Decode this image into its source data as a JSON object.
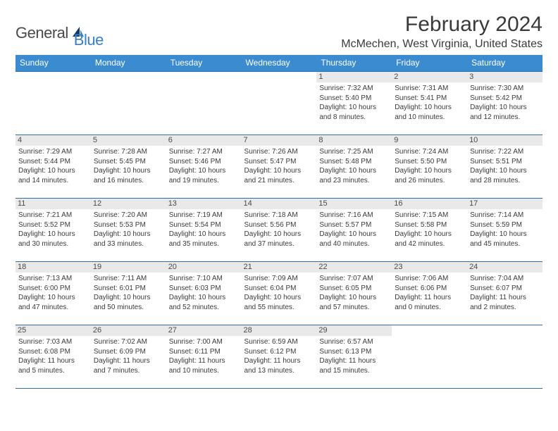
{
  "logo": {
    "text_general": "General",
    "text_blue": "Blue"
  },
  "title": {
    "month": "February 2024",
    "location": "McMechen, West Virginia, United States"
  },
  "colors": {
    "header_bg": "#3a8bd0",
    "header_text": "#ffffff",
    "cell_border": "#2f6fa8",
    "daynum_bg": "#e9e9e9",
    "body_text": "#3a3a3a",
    "logo_blue": "#3a7fc4"
  },
  "weekdays": [
    "Sunday",
    "Monday",
    "Tuesday",
    "Wednesday",
    "Thursday",
    "Friday",
    "Saturday"
  ],
  "weeks": [
    [
      null,
      null,
      null,
      null,
      {
        "num": "1",
        "sunrise": "Sunrise: 7:32 AM",
        "sunset": "Sunset: 5:40 PM",
        "daylight": "Daylight: 10 hours and 8 minutes."
      },
      {
        "num": "2",
        "sunrise": "Sunrise: 7:31 AM",
        "sunset": "Sunset: 5:41 PM",
        "daylight": "Daylight: 10 hours and 10 minutes."
      },
      {
        "num": "3",
        "sunrise": "Sunrise: 7:30 AM",
        "sunset": "Sunset: 5:42 PM",
        "daylight": "Daylight: 10 hours and 12 minutes."
      }
    ],
    [
      {
        "num": "4",
        "sunrise": "Sunrise: 7:29 AM",
        "sunset": "Sunset: 5:44 PM",
        "daylight": "Daylight: 10 hours and 14 minutes."
      },
      {
        "num": "5",
        "sunrise": "Sunrise: 7:28 AM",
        "sunset": "Sunset: 5:45 PM",
        "daylight": "Daylight: 10 hours and 16 minutes."
      },
      {
        "num": "6",
        "sunrise": "Sunrise: 7:27 AM",
        "sunset": "Sunset: 5:46 PM",
        "daylight": "Daylight: 10 hours and 19 minutes."
      },
      {
        "num": "7",
        "sunrise": "Sunrise: 7:26 AM",
        "sunset": "Sunset: 5:47 PM",
        "daylight": "Daylight: 10 hours and 21 minutes."
      },
      {
        "num": "8",
        "sunrise": "Sunrise: 7:25 AM",
        "sunset": "Sunset: 5:48 PM",
        "daylight": "Daylight: 10 hours and 23 minutes."
      },
      {
        "num": "9",
        "sunrise": "Sunrise: 7:24 AM",
        "sunset": "Sunset: 5:50 PM",
        "daylight": "Daylight: 10 hours and 26 minutes."
      },
      {
        "num": "10",
        "sunrise": "Sunrise: 7:22 AM",
        "sunset": "Sunset: 5:51 PM",
        "daylight": "Daylight: 10 hours and 28 minutes."
      }
    ],
    [
      {
        "num": "11",
        "sunrise": "Sunrise: 7:21 AM",
        "sunset": "Sunset: 5:52 PM",
        "daylight": "Daylight: 10 hours and 30 minutes."
      },
      {
        "num": "12",
        "sunrise": "Sunrise: 7:20 AM",
        "sunset": "Sunset: 5:53 PM",
        "daylight": "Daylight: 10 hours and 33 minutes."
      },
      {
        "num": "13",
        "sunrise": "Sunrise: 7:19 AM",
        "sunset": "Sunset: 5:54 PM",
        "daylight": "Daylight: 10 hours and 35 minutes."
      },
      {
        "num": "14",
        "sunrise": "Sunrise: 7:18 AM",
        "sunset": "Sunset: 5:56 PM",
        "daylight": "Daylight: 10 hours and 37 minutes."
      },
      {
        "num": "15",
        "sunrise": "Sunrise: 7:16 AM",
        "sunset": "Sunset: 5:57 PM",
        "daylight": "Daylight: 10 hours and 40 minutes."
      },
      {
        "num": "16",
        "sunrise": "Sunrise: 7:15 AM",
        "sunset": "Sunset: 5:58 PM",
        "daylight": "Daylight: 10 hours and 42 minutes."
      },
      {
        "num": "17",
        "sunrise": "Sunrise: 7:14 AM",
        "sunset": "Sunset: 5:59 PM",
        "daylight": "Daylight: 10 hours and 45 minutes."
      }
    ],
    [
      {
        "num": "18",
        "sunrise": "Sunrise: 7:13 AM",
        "sunset": "Sunset: 6:00 PM",
        "daylight": "Daylight: 10 hours and 47 minutes."
      },
      {
        "num": "19",
        "sunrise": "Sunrise: 7:11 AM",
        "sunset": "Sunset: 6:01 PM",
        "daylight": "Daylight: 10 hours and 50 minutes."
      },
      {
        "num": "20",
        "sunrise": "Sunrise: 7:10 AM",
        "sunset": "Sunset: 6:03 PM",
        "daylight": "Daylight: 10 hours and 52 minutes."
      },
      {
        "num": "21",
        "sunrise": "Sunrise: 7:09 AM",
        "sunset": "Sunset: 6:04 PM",
        "daylight": "Daylight: 10 hours and 55 minutes."
      },
      {
        "num": "22",
        "sunrise": "Sunrise: 7:07 AM",
        "sunset": "Sunset: 6:05 PM",
        "daylight": "Daylight: 10 hours and 57 minutes."
      },
      {
        "num": "23",
        "sunrise": "Sunrise: 7:06 AM",
        "sunset": "Sunset: 6:06 PM",
        "daylight": "Daylight: 11 hours and 0 minutes."
      },
      {
        "num": "24",
        "sunrise": "Sunrise: 7:04 AM",
        "sunset": "Sunset: 6:07 PM",
        "daylight": "Daylight: 11 hours and 2 minutes."
      }
    ],
    [
      {
        "num": "25",
        "sunrise": "Sunrise: 7:03 AM",
        "sunset": "Sunset: 6:08 PM",
        "daylight": "Daylight: 11 hours and 5 minutes."
      },
      {
        "num": "26",
        "sunrise": "Sunrise: 7:02 AM",
        "sunset": "Sunset: 6:09 PM",
        "daylight": "Daylight: 11 hours and 7 minutes."
      },
      {
        "num": "27",
        "sunrise": "Sunrise: 7:00 AM",
        "sunset": "Sunset: 6:11 PM",
        "daylight": "Daylight: 11 hours and 10 minutes."
      },
      {
        "num": "28",
        "sunrise": "Sunrise: 6:59 AM",
        "sunset": "Sunset: 6:12 PM",
        "daylight": "Daylight: 11 hours and 13 minutes."
      },
      {
        "num": "29",
        "sunrise": "Sunrise: 6:57 AM",
        "sunset": "Sunset: 6:13 PM",
        "daylight": "Daylight: 11 hours and 15 minutes."
      },
      null,
      null
    ]
  ]
}
